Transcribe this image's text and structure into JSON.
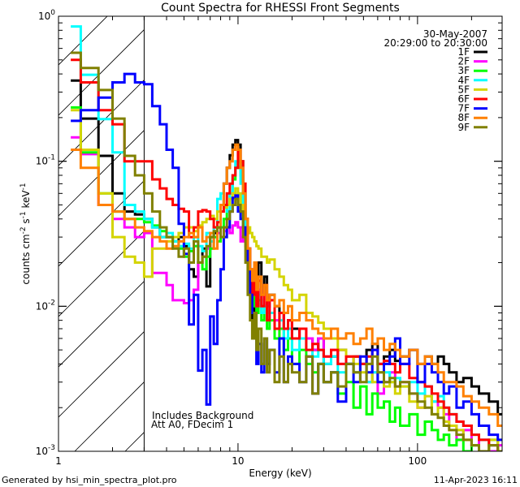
{
  "chart_data": {
    "type": "line",
    "title": "Count Spectra for RHESSI Front Segments",
    "xlabel": "Energy (keV)",
    "ylabel": {
      "base": "counts cm",
      "exp1": "-2",
      "mid": " s",
      "exp2": "-1",
      "mid2": " keV",
      "exp3": "-1"
    },
    "xscale": "log",
    "yscale": "log",
    "xlim": [
      1,
      296
    ],
    "ylim": [
      0.001,
      1
    ],
    "x_ticks": [
      {
        "value": 1,
        "label": "1"
      },
      {
        "value": 10,
        "label": "10"
      },
      {
        "value": 100,
        "label": "100"
      }
    ],
    "y_ticks": [
      {
        "value": 1,
        "base": "10",
        "exp": "0"
      },
      {
        "value": 0.1,
        "base": "10",
        "exp": "-1"
      },
      {
        "value": 0.01,
        "base": "10",
        "exp": "-2"
      },
      {
        "value": 0.001,
        "base": "10",
        "exp": "-3"
      }
    ],
    "attenuator_edge_keV": 3,
    "legend_position": "top-right",
    "date": "30-May-2007",
    "time_range": "20:29:00 to 20:30:00",
    "annotations": [
      "Includes Background",
      "Att A0, FDecim 1"
    ],
    "energy_edges": [
      1.17,
      1.33,
      1.67,
      2,
      2.33,
      2.67,
      3,
      3.33,
      3.67,
      4,
      4.33,
      4.67,
      5,
      5.33,
      5.67,
      6,
      6.33,
      6.67,
      7,
      7.33,
      7.67,
      8,
      8.33,
      8.67,
      9,
      9.33,
      9.67,
      10,
      10.33,
      10.67,
      11,
      11.33,
      11.67,
      12,
      12.33,
      12.67,
      13,
      13.5,
      14,
      14.5,
      15,
      16,
      17,
      18,
      19,
      20,
      22,
      24,
      26,
      28,
      30,
      33,
      36,
      40,
      44,
      48,
      52,
      56,
      60,
      65,
      70,
      75,
      80,
      90,
      100,
      110,
      120,
      130,
      140,
      150,
      165,
      180,
      200,
      220,
      250,
      280,
      300
    ],
    "series": [
      {
        "name": "1F",
        "color": "#000000",
        "values": [
          0.36,
          0.197,
          0.109,
          0.06,
          0.045,
          0.043,
          0.04,
          0.035,
          0.03,
          0.03,
          0.028,
          0.03,
          0.026,
          0.018,
          0.016,
          0.02,
          0.025,
          0.0137,
          0.03,
          0.032,
          0.035,
          0.05,
          0.07,
          0.09,
          0.11,
          0.13,
          0.14,
          0.13,
          0.1,
          0.06,
          0.04,
          0.025,
          0.015,
          0.008,
          0.012,
          0.01,
          0.02,
          0.012,
          0.016,
          0.01,
          0.012,
          0.01,
          0.009,
          0.007,
          0.008,
          0.007,
          0.006,
          0.006,
          0.005,
          0.006,
          0.004,
          0.0045,
          0.005,
          0.004,
          0.0045,
          0.004,
          0.005,
          0.0055,
          0.004,
          0.0045,
          0.005,
          0.0042,
          0.0045,
          0.005,
          0.004,
          0.0045,
          0.004,
          0.0045,
          0.004,
          0.0035,
          0.003,
          0.0032,
          0.0028,
          0.0025,
          0.0022,
          0.0018
        ]
      },
      {
        "name": "2F",
        "color": "#ff00ff",
        "values": [
          0.146,
          0.112,
          0.05,
          0.04,
          0.035,
          0.03,
          0.032,
          0.017,
          0.017,
          0.014,
          0.011,
          0.011,
          0.0105,
          0.011,
          0.013,
          0.02,
          0.022,
          0.025,
          0.028,
          0.03,
          0.032,
          0.03,
          0.033,
          0.035,
          0.032,
          0.036,
          0.038,
          0.035,
          0.028,
          0.03,
          0.026,
          0.02,
          0.016,
          0.012,
          0.015,
          0.011,
          0.013,
          0.01,
          0.012,
          0.009,
          0.011,
          0.008,
          0.009,
          0.007,
          0.008,
          0.006,
          0.007,
          0.006,
          0.005,
          0.006,
          0.0045,
          0.005,
          0.004,
          0.0045,
          0.0035,
          0.004,
          0.003,
          0.0035,
          0.0025,
          0.003,
          0.0035,
          0.0028,
          0.003,
          0.0025,
          0.002,
          0.0028,
          0.0022,
          0.002,
          0.0018,
          0.0015,
          0.0012,
          0.0014,
          0.0011,
          0.0012,
          0.001,
          0.0011
        ]
      },
      {
        "name": "3F",
        "color": "#00ff00",
        "values": [
          0.235,
          0.115,
          0.06,
          0.045,
          0.04,
          0.04,
          0.038,
          0.036,
          0.033,
          0.03,
          0.028,
          0.025,
          0.022,
          0.024,
          0.026,
          0.02,
          0.018,
          0.022,
          0.025,
          0.03,
          0.028,
          0.035,
          0.04,
          0.05,
          0.06,
          0.075,
          0.09,
          0.1,
          0.08,
          0.05,
          0.03,
          0.02,
          0.014,
          0.012,
          0.01,
          0.009,
          0.011,
          0.008,
          0.01,
          0.007,
          0.008,
          0.006,
          0.007,
          0.005,
          0.006,
          0.004,
          0.005,
          0.004,
          0.0035,
          0.004,
          0.003,
          0.0035,
          0.0025,
          0.003,
          0.002,
          0.0028,
          0.0018,
          0.0025,
          0.002,
          0.0022,
          0.0016,
          0.002,
          0.0015,
          0.0018,
          0.0013,
          0.0016,
          0.0014,
          0.0012,
          0.0013,
          0.0011,
          0.0012,
          0.001,
          0.0011,
          0.001,
          0.0012,
          0.001
        ]
      },
      {
        "name": "4F",
        "color": "#00ffff",
        "values": [
          0.85,
          0.395,
          0.195,
          0.115,
          0.05,
          0.045,
          0.04,
          0.035,
          0.03,
          0.032,
          0.028,
          0.026,
          0.027,
          0.025,
          0.03,
          0.026,
          0.024,
          0.032,
          0.028,
          0.035,
          0.055,
          0.06,
          0.05,
          0.045,
          0.06,
          0.08,
          0.1,
          0.095,
          0.07,
          0.045,
          0.03,
          0.02,
          0.016,
          0.013,
          0.012,
          0.01,
          0.012,
          0.009,
          0.01,
          0.008,
          0.009,
          0.007,
          0.008,
          0.006,
          0.007,
          0.005,
          0.006,
          0.005,
          0.0045,
          0.005,
          0.004,
          0.0045,
          0.0035,
          0.004,
          0.0035,
          0.004,
          0.003,
          0.0035,
          0.003,
          0.0035,
          0.003,
          0.0032,
          0.0028,
          0.003,
          0.0025,
          0.0028,
          0.0022,
          0.0024,
          0.002,
          0.0018,
          0.0016,
          0.0015,
          0.0013,
          0.0012,
          0.0011,
          0.001
        ]
      },
      {
        "name": "5F",
        "color": "#d4d400",
        "values": [
          0.225,
          0.12,
          0.06,
          0.03,
          0.022,
          0.02,
          0.016,
          0.025,
          0.025,
          0.028,
          0.03,
          0.032,
          0.035,
          0.035,
          0.033,
          0.036,
          0.038,
          0.04,
          0.042,
          0.04,
          0.045,
          0.05,
          0.048,
          0.05,
          0.055,
          0.06,
          0.065,
          0.06,
          0.05,
          0.045,
          0.04,
          0.035,
          0.032,
          0.03,
          0.028,
          0.026,
          0.025,
          0.022,
          0.022,
          0.02,
          0.021,
          0.018,
          0.016,
          0.014,
          0.013,
          0.011,
          0.012,
          0.009,
          0.0085,
          0.0077,
          0.007,
          0.006,
          0.005,
          0.0045,
          0.004,
          0.0035,
          0.004,
          0.003,
          0.0035,
          0.0028,
          0.003,
          0.0025,
          0.0028,
          0.0022,
          0.002,
          0.0024,
          0.0018,
          0.002,
          0.0016,
          0.0015,
          0.0014,
          0.0012,
          0.0011,
          0.001,
          0.0012,
          0.001
        ]
      },
      {
        "name": "6F",
        "color": "#ff0000",
        "values": [
          0.5,
          0.35,
          0.225,
          0.18,
          0.1,
          0.1,
          0.1,
          0.075,
          0.065,
          0.055,
          0.05,
          0.047,
          0.045,
          0.03,
          0.035,
          0.045,
          0.046,
          0.045,
          0.04,
          0.035,
          0.038,
          0.045,
          0.05,
          0.06,
          0.07,
          0.08,
          0.09,
          0.12,
          0.1,
          0.07,
          0.04,
          0.025,
          0.018,
          0.012,
          0.02,
          0.01,
          0.015,
          0.01,
          0.014,
          0.008,
          0.011,
          0.007,
          0.009,
          0.007,
          0.008,
          0.006,
          0.007,
          0.005,
          0.0055,
          0.005,
          0.0045,
          0.005,
          0.004,
          0.0045,
          0.0045,
          0.004,
          0.0045,
          0.005,
          0.004,
          0.0042,
          0.004,
          0.0035,
          0.004,
          0.0032,
          0.003,
          0.0028,
          0.0025,
          0.0022,
          0.002,
          0.0018,
          0.0016,
          0.0015,
          0.0013,
          0.0012,
          0.0011,
          0.001
        ]
      },
      {
        "name": "7F",
        "color": "#0000ff",
        "values": [
          0.19,
          0.225,
          0.275,
          0.35,
          0.4,
          0.35,
          0.34,
          0.24,
          0.18,
          0.12,
          0.09,
          0.037,
          0.023,
          0.0075,
          0.012,
          0.0036,
          0.005,
          0.0021,
          0.0085,
          0.0055,
          0.011,
          0.018,
          0.03,
          0.035,
          0.045,
          0.056,
          0.058,
          0.045,
          0.04,
          0.035,
          0.03,
          0.02,
          0.012,
          0.009,
          0.006,
          0.004,
          0.0055,
          0.0035,
          0.006,
          0.004,
          0.005,
          0.0035,
          0.006,
          0.003,
          0.0045,
          0.004,
          0.003,
          0.0045,
          0.0025,
          0.004,
          0.003,
          0.0035,
          0.0022,
          0.004,
          0.003,
          0.0045,
          0.0035,
          0.005,
          0.003,
          0.004,
          0.0045,
          0.006,
          0.004,
          0.005,
          0.003,
          0.004,
          0.0035,
          0.003,
          0.0025,
          0.0028,
          0.002,
          0.0022,
          0.0018,
          0.0015,
          0.0013,
          0.0012
        ]
      },
      {
        "name": "8F",
        "color": "#ff8000",
        "values": [
          0.12,
          0.09,
          0.05,
          0.045,
          0.04,
          0.035,
          0.033,
          0.03,
          0.028,
          0.025,
          0.026,
          0.028,
          0.03,
          0.032,
          0.03,
          0.035,
          0.028,
          0.03,
          0.032,
          0.025,
          0.035,
          0.05,
          0.07,
          0.09,
          0.1,
          0.12,
          0.13,
          0.12,
          0.09,
          0.06,
          0.04,
          0.025,
          0.018,
          0.015,
          0.02,
          0.013,
          0.016,
          0.012,
          0.014,
          0.011,
          0.012,
          0.01,
          0.011,
          0.009,
          0.01,
          0.008,
          0.009,
          0.008,
          0.007,
          0.0065,
          0.006,
          0.007,
          0.006,
          0.0065,
          0.0055,
          0.006,
          0.007,
          0.0055,
          0.006,
          0.005,
          0.0055,
          0.005,
          0.0045,
          0.005,
          0.004,
          0.0045,
          0.004,
          0.0035,
          0.003,
          0.003,
          0.0028,
          0.0024,
          0.0022,
          0.002,
          0.0018,
          0.0015
        ]
      },
      {
        "name": "9F",
        "color": "#808000",
        "values": [
          0.56,
          0.44,
          0.31,
          0.197,
          0.109,
          0.08,
          0.06,
          0.045,
          0.035,
          0.03,
          0.025,
          0.022,
          0.025,
          0.02,
          0.028,
          0.02,
          0.022,
          0.026,
          0.03,
          0.033,
          0.035,
          0.03,
          0.035,
          0.04,
          0.045,
          0.05,
          0.055,
          0.05,
          0.045,
          0.03,
          0.02,
          0.012,
          0.008,
          0.006,
          0.009,
          0.005,
          0.007,
          0.004,
          0.006,
          0.0035,
          0.005,
          0.003,
          0.0045,
          0.003,
          0.004,
          0.0035,
          0.003,
          0.0045,
          0.0025,
          0.004,
          0.003,
          0.0035,
          0.0028,
          0.004,
          0.0035,
          0.003,
          0.004,
          0.0045,
          0.0035,
          0.003,
          0.0032,
          0.0028,
          0.003,
          0.0025,
          0.0022,
          0.002,
          0.0018,
          0.0017,
          0.0015,
          0.0014,
          0.0013,
          0.0012,
          0.0011,
          0.001,
          0.0011,
          0.001
        ]
      }
    ]
  },
  "footer": {
    "generated_by": "Generated by hsi_min_spectra_plot.pro",
    "timestamp": "11-Apr-2023 16:11"
  }
}
